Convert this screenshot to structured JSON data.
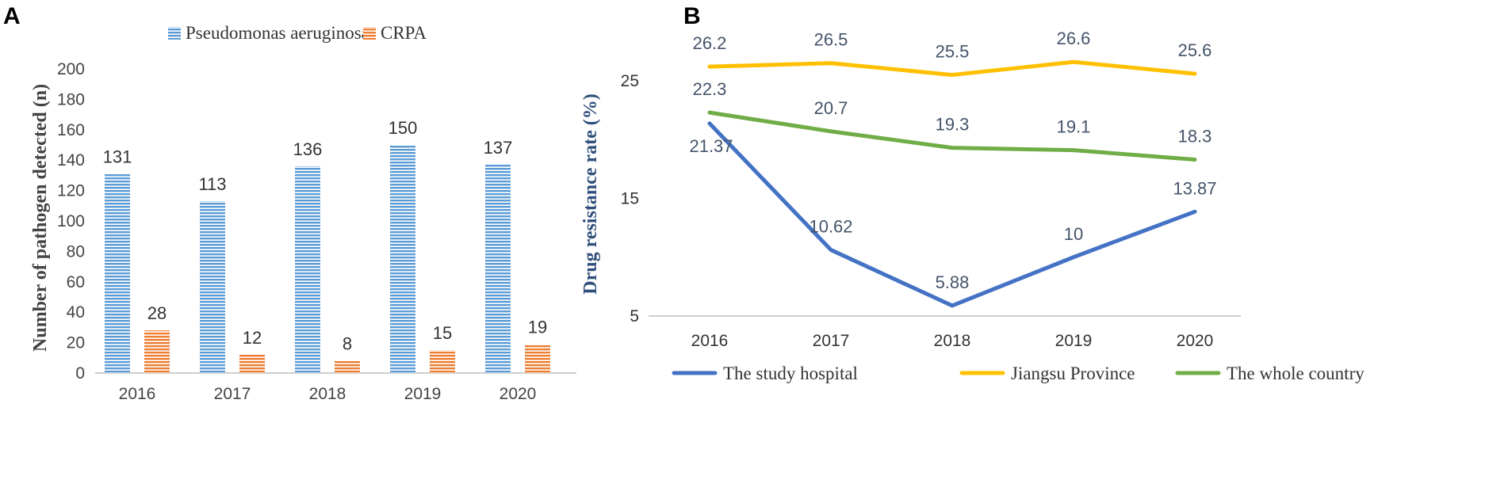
{
  "panels": {
    "a_label": "A",
    "b_label": "B"
  },
  "colors": {
    "blue_bar": "#5b9bd5",
    "orange_bar": "#ed7d31",
    "line_blue": "#4472c4",
    "line_yellow": "#ffc000",
    "line_green": "#70ad47",
    "axis": "#bfbfbf"
  },
  "chart_data": [
    {
      "type": "bar",
      "panel": "A",
      "categories": [
        "2016",
        "2017",
        "2018",
        "2019",
        "2020"
      ],
      "series": [
        {
          "name": "Pseudomonas aeruginosa",
          "values": [
            131,
            113,
            136,
            150,
            137
          ]
        },
        {
          "name": "CRPA",
          "values": [
            28,
            12,
            8,
            15,
            19
          ]
        }
      ],
      "ylabel": "Number of pathogen detected (n)",
      "xlabel": "",
      "ylim": [
        0,
        200
      ],
      "yticks": [
        0,
        20,
        40,
        60,
        80,
        100,
        120,
        140,
        160,
        180,
        200
      ],
      "legend_position": "top"
    },
    {
      "type": "line",
      "panel": "B",
      "categories": [
        "2016",
        "2017",
        "2018",
        "2019",
        "2020"
      ],
      "series": [
        {
          "name": "The study hospital",
          "values": [
            21.37,
            10.62,
            5.88,
            10,
            13.87
          ],
          "labels": [
            "21.37",
            "10.62",
            "5.88",
            "10",
            "13.87"
          ]
        },
        {
          "name": "Jiangsu Province",
          "values": [
            26.2,
            26.5,
            25.5,
            26.6,
            25.6
          ],
          "labels": [
            "26.2",
            "26.5",
            "25.5",
            "26.6",
            "25.6"
          ]
        },
        {
          "name": "The whole country",
          "values": [
            22.3,
            20.7,
            19.3,
            19.1,
            18.3
          ],
          "labels": [
            "22.3",
            "20.7",
            "19.3",
            "19.1",
            "18.3"
          ]
        }
      ],
      "ylabel": "Drug resistance rate (%)",
      "xlabel": "",
      "ylim": [
        5,
        25
      ],
      "yticks": [
        5,
        15,
        25
      ],
      "legend_position": "bottom"
    }
  ]
}
